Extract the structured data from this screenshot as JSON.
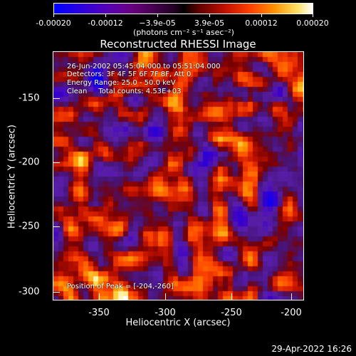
{
  "colorbar": {
    "ticks": [
      "-0.00020",
      "-0.00012",
      "−3.9e-05",
      "3.9e-05",
      "0.00012",
      "0.00020"
    ],
    "units": "(photons cm⁻² s⁻¹ asec⁻²)"
  },
  "title": "Reconstructed RHESSI Image",
  "info": {
    "time": "26-Jun-2002 05:45:04.000 to 05:51:04.000",
    "detectors": "Detectors: 3F 4F 5F 6F 7F 8F, Att 0",
    "energy": "Energy Range: 25.0 - 50.0 keV",
    "clean": "Clean     Total counts: 4.53E+03",
    "peak": "Position of Peak = [-204,-260]"
  },
  "axes": {
    "xlabel": "Heliocentric X (arcsec)",
    "ylabel": "Heliocentric Y (arcsec)",
    "xticks": [
      "-350",
      "-300",
      "-250",
      "-200"
    ],
    "yticks": [
      "-150",
      "-200",
      "-250",
      "-300"
    ]
  },
  "chart_data": {
    "type": "heatmap",
    "title": "Reconstructed RHESSI Image",
    "xlabel": "Heliocentric X (arcsec)",
    "ylabel": "Heliocentric Y (arcsec)",
    "xlim": [
      -385,
      -195
    ],
    "ylim": [
      -310,
      -125
    ],
    "color_range": [
      -0.0002,
      0.0002
    ],
    "peak": [
      -204,
      -260
    ]
  },
  "datestamp": "29-Apr-2022 16:26"
}
